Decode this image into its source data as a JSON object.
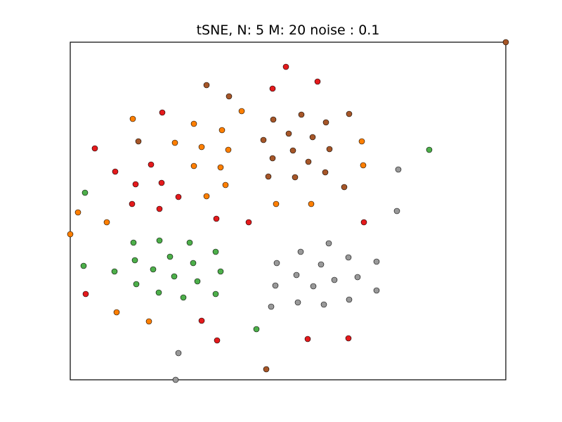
{
  "chart_data": {
    "type": "scatter",
    "title": "tSNE, N: 5 M: 20 noise : 0.1",
    "xlabel": "",
    "ylabel": "",
    "xlim": [
      0,
      620
    ],
    "ylim": [
      0,
      480
    ],
    "grid": false,
    "ticks": false,
    "legend": "none",
    "colors": {
      "red": "#e41a1c",
      "orange": "#ff7f00",
      "brown": "#a65628",
      "green": "#4daf4a",
      "gray": "#999999"
    },
    "series": [
      {
        "color": "#e41a1c",
        "points": [
          [
            307,
            445
          ],
          [
            352,
            424
          ],
          [
            288,
            414
          ],
          [
            131,
            380
          ],
          [
            35,
            329
          ],
          [
            64,
            296
          ],
          [
            115,
            306
          ],
          [
            93,
            278
          ],
          [
            130,
            280
          ],
          [
            154,
            260
          ],
          [
            88,
            250
          ],
          [
            127,
            243
          ],
          [
            208,
            229
          ],
          [
            254,
            224
          ],
          [
            418,
            224
          ],
          [
            22,
            122
          ],
          [
            187,
            84
          ],
          [
            209,
            56
          ],
          [
            338,
            58
          ],
          [
            396,
            59
          ]
        ]
      },
      {
        "color": "#ff7f00",
        "points": [
          [
            89,
            371
          ],
          [
            176,
            364
          ],
          [
            244,
            382
          ],
          [
            216,
            355
          ],
          [
            149,
            337
          ],
          [
            187,
            331
          ],
          [
            225,
            327
          ],
          [
            415,
            339
          ],
          [
            176,
            304
          ],
          [
            214,
            302
          ],
          [
            417,
            305
          ],
          [
            221,
            277
          ],
          [
            194,
            261
          ],
          [
            293,
            250
          ],
          [
            343,
            250
          ],
          [
            11,
            238
          ],
          [
            52,
            224
          ],
          [
            0,
            207
          ],
          [
            66,
            96
          ],
          [
            112,
            83
          ]
        ]
      },
      {
        "color": "#a65628",
        "points": [
          [
            620,
            480
          ],
          [
            194,
            419
          ],
          [
            226,
            403
          ],
          [
            289,
            370
          ],
          [
            329,
            377
          ],
          [
            364,
            366
          ],
          [
            397,
            378
          ],
          [
            311,
            350
          ],
          [
            345,
            345
          ],
          [
            97,
            339
          ],
          [
            275,
            341
          ],
          [
            317,
            326
          ],
          [
            369,
            328
          ],
          [
            288,
            315
          ],
          [
            339,
            310
          ],
          [
            363,
            295
          ],
          [
            282,
            289
          ],
          [
            320,
            288
          ],
          [
            390,
            274
          ],
          [
            279,
            15
          ]
        ]
      },
      {
        "color": "#4daf4a",
        "points": [
          [
            511,
            327
          ],
          [
            21,
            266
          ],
          [
            90,
            195
          ],
          [
            127,
            198
          ],
          [
            170,
            195
          ],
          [
            207,
            182
          ],
          [
            142,
            175
          ],
          [
            92,
            170
          ],
          [
            175,
            166
          ],
          [
            19,
            162
          ],
          [
            63,
            154
          ],
          [
            118,
            157
          ],
          [
            214,
            154
          ],
          [
            148,
            147
          ],
          [
            94,
            136
          ],
          [
            181,
            140
          ],
          [
            126,
            124
          ],
          [
            161,
            117
          ],
          [
            207,
            122
          ],
          [
            265,
            72
          ]
        ]
      },
      {
        "color": "#999999",
        "points": [
          [
            467,
            299
          ],
          [
            465,
            240
          ],
          [
            368,
            194
          ],
          [
            328,
            182
          ],
          [
            396,
            174
          ],
          [
            294,
            166
          ],
          [
            357,
            164
          ],
          [
            436,
            168
          ],
          [
            322,
            149
          ],
          [
            409,
            146
          ],
          [
            376,
            142
          ],
          [
            292,
            134
          ],
          [
            346,
            133
          ],
          [
            436,
            127
          ],
          [
            286,
            104
          ],
          [
            324,
            110
          ],
          [
            361,
            107
          ],
          [
            397,
            114
          ],
          [
            154,
            38
          ],
          [
            150,
            0
          ]
        ]
      }
    ]
  }
}
